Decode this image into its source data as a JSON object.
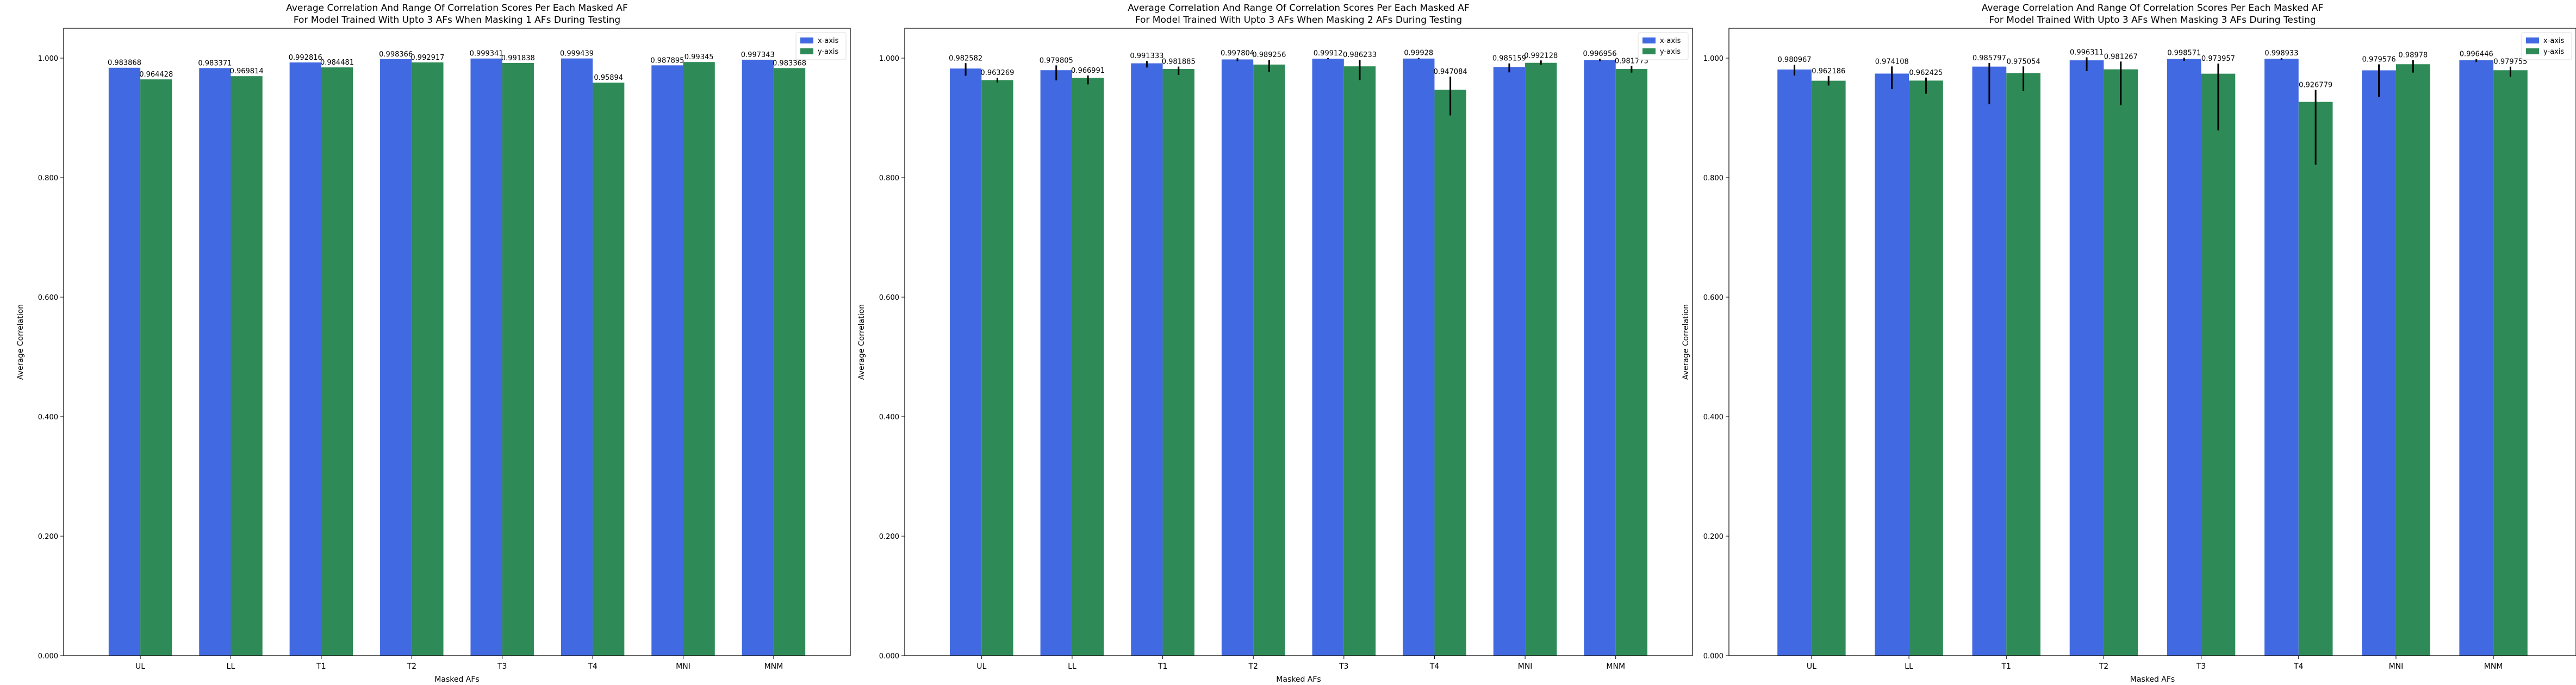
{
  "colors": {
    "x_axis": "#4169e1",
    "y_axis": "#2e8b57",
    "error_bar": "#000000"
  },
  "chart_data": [
    {
      "type": "bar",
      "title": "Average Correlation And Range Of Correlation Scores Per Each Masked AF",
      "subtitle": "For Model Trained With Upto 3 AFs When Masking 1 AFs During Testing",
      "xlabel": "Masked AFs",
      "ylabel": "Average Correlation",
      "ylim": [
        0,
        1.05
      ],
      "yticks": [
        "0.000",
        "0.200",
        "0.400",
        "0.600",
        "0.800",
        "1.000"
      ],
      "categories": [
        "UL",
        "LL",
        "T1",
        "T2",
        "T3",
        "T4",
        "MNI",
        "MNM"
      ],
      "legend_position": "top-right",
      "series": [
        {
          "name": "x-axis",
          "values": [
            0.983868,
            0.983371,
            0.992816,
            0.998366,
            0.999341,
            0.999439,
            0.987895,
            0.997343
          ],
          "labels": [
            "0.983868",
            "0.983371",
            "0.992816",
            "0.998366",
            "0.999341",
            "0.999439",
            "0.987895",
            "0.997343"
          ],
          "err_low": [
            0,
            0,
            0,
            0,
            0,
            0,
            0,
            0
          ],
          "err_high": [
            0,
            0,
            0,
            0,
            0,
            0,
            0,
            0
          ]
        },
        {
          "name": "y-axis",
          "values": [
            0.964428,
            0.969814,
            0.984481,
            0.992917,
            0.991838,
            0.95894,
            0.99345,
            0.983368
          ],
          "labels": [
            "0.964428",
            "0.969814",
            "0.984481",
            "0.992917",
            "0.991838",
            "0.95894",
            "0.99345",
            "0.983368"
          ],
          "err_low": [
            0,
            0,
            0,
            0,
            0,
            0,
            0,
            0
          ],
          "err_high": [
            0,
            0,
            0,
            0,
            0,
            0,
            0,
            0
          ]
        }
      ]
    },
    {
      "type": "bar",
      "title": "Average Correlation And Range Of Correlation Scores Per Each Masked AF",
      "subtitle": "For Model Trained With Upto 3 AFs When Masking 2 AFs During Testing",
      "xlabel": "Masked AFs",
      "ylabel": "Average Correlation",
      "ylim": [
        0,
        1.05
      ],
      "yticks": [
        "0.000",
        "0.200",
        "0.400",
        "0.600",
        "0.800",
        "1.000"
      ],
      "categories": [
        "UL",
        "LL",
        "T1",
        "T2",
        "T3",
        "T4",
        "MNI",
        "MNM"
      ],
      "legend_position": "top-right",
      "series": [
        {
          "name": "x-axis",
          "values": [
            0.982582,
            0.979805,
            0.991333,
            0.997804,
            0.99912,
            0.99928,
            0.985159,
            0.996956
          ],
          "labels": [
            "0.982582",
            "0.979805",
            "0.991333",
            "0.997804",
            "0.99912",
            "0.99928",
            "0.985159",
            "0.996956"
          ],
          "err_low": [
            0.012,
            0.017,
            0.007,
            0.003,
            0.001,
            0.001,
            0.009,
            0.002
          ],
          "err_high": [
            0.009,
            0.008,
            0.004,
            0.002,
            0.001,
            0.001,
            0.006,
            0.002
          ]
        },
        {
          "name": "y-axis",
          "values": [
            0.963269,
            0.966991,
            0.981885,
            0.989256,
            0.986233,
            0.947084,
            0.992128,
            0.981775
          ],
          "labels": [
            "0.963269",
            "0.966991",
            "0.981885",
            "0.989256",
            "0.986233",
            "0.947084",
            "0.992128",
            "0.981775"
          ],
          "err_low": [
            0.004,
            0.011,
            0.01,
            0.012,
            0.023,
            0.043,
            0.003,
            0.006
          ],
          "err_high": [
            0.004,
            0.004,
            0.004,
            0.008,
            0.011,
            0.022,
            0.004,
            0.005
          ]
        }
      ]
    },
    {
      "type": "bar",
      "title": "Average Correlation And Range Of Correlation Scores Per Each Masked AF",
      "subtitle": "For Model Trained With Upto 3 AFs When Masking 3 AFs During Testing",
      "xlabel": "Masked AFs",
      "ylabel": "Average Correlation",
      "ylim": [
        0,
        1.05
      ],
      "yticks": [
        "0.000",
        "0.200",
        "0.400",
        "0.600",
        "0.800",
        "1.000"
      ],
      "categories": [
        "UL",
        "LL",
        "T1",
        "T2",
        "T3",
        "T4",
        "MNI",
        "MNM"
      ],
      "legend_position": "top-right",
      "series": [
        {
          "name": "x-axis",
          "values": [
            0.980967,
            0.974108,
            0.985797,
            0.996311,
            0.998571,
            0.998933,
            0.979576,
            0.996446
          ],
          "labels": [
            "0.980967",
            "0.974108",
            "0.985797",
            "0.996311",
            "0.998571",
            "0.998933",
            "0.979576",
            "0.996446"
          ],
          "err_low": [
            0.01,
            0.026,
            0.063,
            0.018,
            0.003,
            0.002,
            0.045,
            0.003
          ],
          "err_high": [
            0.008,
            0.012,
            0.006,
            0.005,
            0.002,
            0.001,
            0.01,
            0.002
          ]
        },
        {
          "name": "y-axis",
          "values": [
            0.962186,
            0.962425,
            0.975054,
            0.981267,
            0.973957,
            0.926779,
            0.98978,
            0.979755
          ],
          "labels": [
            "0.962186",
            "0.962425",
            "0.975054",
            "0.981267",
            "0.973957",
            "0.926779",
            "0.98978",
            "0.979755"
          ],
          "err_low": [
            0.008,
            0.022,
            0.03,
            0.06,
            0.095,
            0.105,
            0.014,
            0.011
          ],
          "err_high": [
            0.008,
            0.005,
            0.011,
            0.013,
            0.017,
            0.02,
            0.007,
            0.006
          ]
        }
      ]
    }
  ]
}
